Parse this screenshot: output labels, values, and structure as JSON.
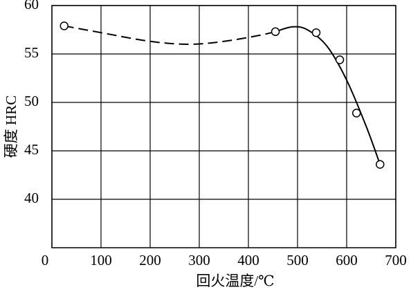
{
  "chart_data": {
    "type": "line",
    "x_label": "回火温度/℃",
    "y_label": "硬度 HRC",
    "xlim": [
      0,
      700
    ],
    "ylim": [
      35,
      60
    ],
    "xticks": [
      0,
      100,
      200,
      300,
      400,
      500,
      600,
      700
    ],
    "yticks": [
      40,
      45,
      50,
      55,
      60
    ],
    "grid": true,
    "color": "#000000",
    "series": [
      {
        "style": "dashed",
        "x": [
          25,
          100,
          200,
          280,
          350,
          420,
          455
        ],
        "values": [
          57.9,
          57.2,
          56.3,
          56.0,
          56.3,
          56.9,
          57.3
        ]
      },
      {
        "style": "solid",
        "x": [
          455,
          490,
          520,
          560,
          600,
          640,
          668
        ],
        "values": [
          57.3,
          57.8,
          57.5,
          55.8,
          52.3,
          47.5,
          43.6
        ]
      },
      {
        "style": "markers",
        "x": [
          25,
          455,
          538,
          586,
          620,
          668
        ],
        "values": [
          57.9,
          57.3,
          57.2,
          54.4,
          48.9,
          43.6
        ]
      }
    ]
  }
}
